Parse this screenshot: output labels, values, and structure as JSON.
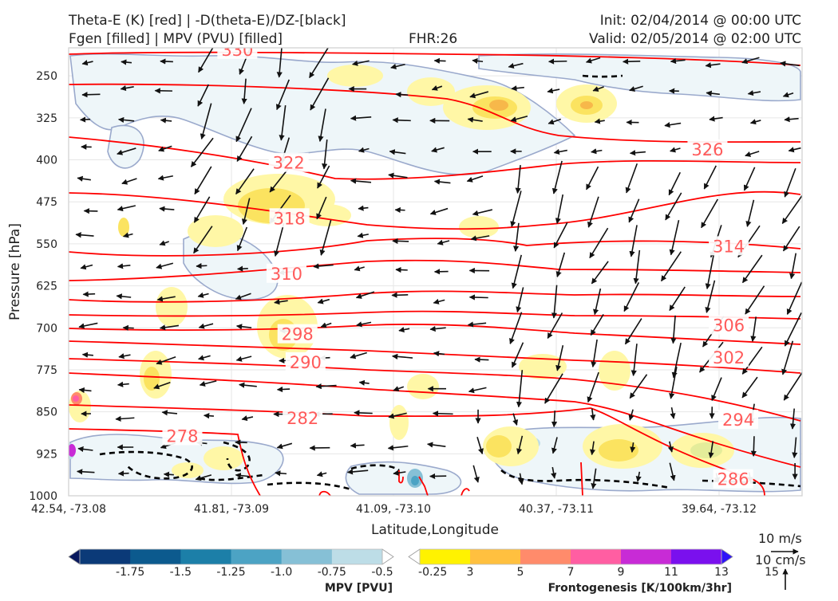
{
  "header": {
    "line1_left": "Theta-E (K) [red] | -D(theta-E)/DZ-[black]",
    "line2_left": "Fgen [filled] | MPV (PVU) [filled]",
    "fhr": "FHR:26",
    "init": "Init: 02/04/2014 @ 00:00 UTC",
    "valid": "Valid: 02/05/2014 @ 02:00 UTC"
  },
  "colors": {
    "theta_e": "#ff0000",
    "theta_e_label": "#ff5a5a",
    "stability": "#000000",
    "mpv_outline": "#9aa9cc",
    "mpv_fill": "#eef6f9",
    "fgen_light": "#fff7a6",
    "fgen_mid": "#fbe360",
    "fgen_orange": "#f7b84a",
    "vectors": "#111111"
  },
  "chart_data": {
    "type": "heatmap",
    "xlabel": "Latitude,Longitude",
    "ylabel": "Pressure [hPa]",
    "ylim": [
      1000,
      200
    ],
    "yticks": [
      250,
      325,
      400,
      475,
      550,
      625,
      700,
      775,
      850,
      925,
      1000
    ],
    "xticks": [
      "42.54, -73.08",
      "41.81, -73.09",
      "41.09, -73.10",
      "40.37, -73.11",
      "39.64, -73.12"
    ],
    "theta_e_labels": [
      {
        "value": "330",
        "x": 0.23,
        "p": 204
      },
      {
        "value": "326",
        "x": 0.871,
        "p": 382
      },
      {
        "value": "322",
        "x": 0.3,
        "p": 406
      },
      {
        "value": "318",
        "x": 0.301,
        "p": 505
      },
      {
        "value": "314",
        "x": 0.9,
        "p": 555
      },
      {
        "value": "310",
        "x": 0.297,
        "p": 604
      },
      {
        "value": "306",
        "x": 0.9,
        "p": 696
      },
      {
        "value": "302",
        "x": 0.9,
        "p": 754
      },
      {
        "value": "298",
        "x": 0.312,
        "p": 712
      },
      {
        "value": "294",
        "x": 0.913,
        "p": 865
      },
      {
        "value": "290",
        "x": 0.323,
        "p": 762
      },
      {
        "value": "286",
        "x": 0.906,
        "p": 971
      },
      {
        "value": "282",
        "x": 0.319,
        "p": 862
      },
      {
        "value": "278",
        "x": 0.155,
        "p": 894
      }
    ],
    "mpv_colorbar": {
      "title": "MPV [PVU]",
      "labels": [
        "-1.75",
        "-1.5",
        "-1.25",
        "-1.0",
        "-0.75",
        "-0.5",
        "-0.25"
      ],
      "colors": [
        "#08185e",
        "#0b3a78",
        "#0c5a8e",
        "#1c7fa8",
        "#4ca3c4",
        "#86c0d6",
        "#bddde7",
        "#ffffff"
      ]
    },
    "fgen_colorbar": {
      "title": "Frontogenesis [K/100km/3hr]",
      "labels": [
        "3",
        "5",
        "7",
        "9",
        "11",
        "13",
        "15"
      ],
      "colors": [
        "#ffffff",
        "#fff200",
        "#ffc03f",
        "#ff8b6b",
        "#ff5ea2",
        "#c82bd6",
        "#7a10ee",
        "#2f14f8"
      ]
    },
    "vector_key": {
      "horizontal": "10 m/s",
      "vertical": "10 cm/s"
    }
  }
}
